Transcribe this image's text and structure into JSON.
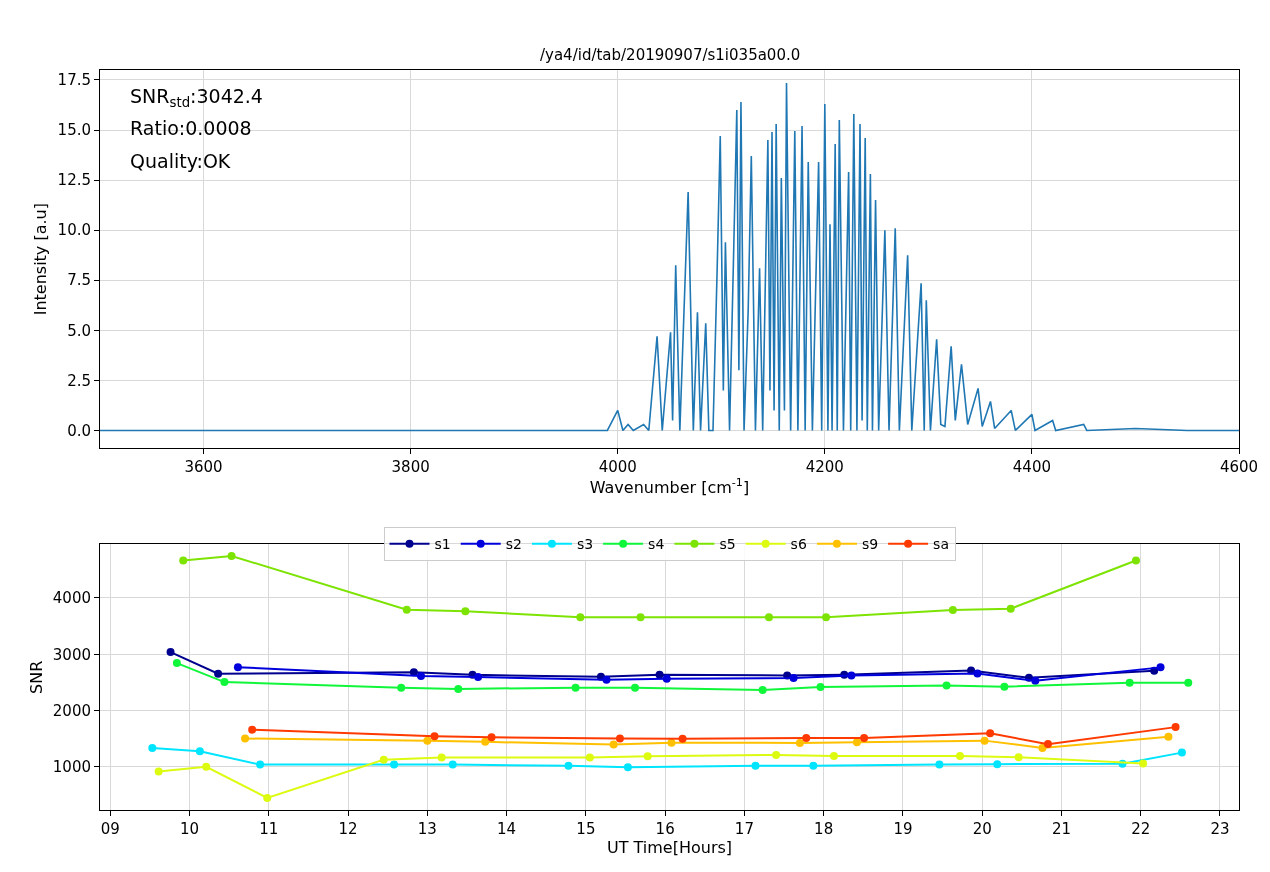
{
  "chart_data": [
    {
      "type": "line",
      "title": "/ya4/id/tab/20190907/s1i035a00.0",
      "xlabel": "Wavenumber [cm$^{-1}$]",
      "ylabel": "Intensity [a.u]",
      "annotations": [
        "SNR$_{std}$:3042.4",
        "Ratio:0.0008",
        "Quality:OK"
      ],
      "xlim": [
        3500,
        4600
      ],
      "xticks": [
        3600,
        3800,
        4000,
        4200,
        4400,
        4600
      ],
      "ylim": [
        -0.9,
        18.0
      ],
      "yticks": [
        {
          "value": 0,
          "label": "0.0"
        },
        {
          "value": 2.5,
          "label": "2.5"
        },
        {
          "value": 5,
          "label": "5.0"
        },
        {
          "value": 7.5,
          "label": "7.5"
        },
        {
          "value": 10,
          "label": "10.0"
        },
        {
          "value": 12.5,
          "label": "12.5"
        },
        {
          "value": 15,
          "label": "15.0"
        },
        {
          "value": 17.5,
          "label": "17.5"
        }
      ],
      "grid": true,
      "marker": "none",
      "line_style": "solid",
      "series": [
        {
          "color": "#1f77b4",
          "x": [
            3500,
            3990,
            4000,
            4005,
            4010,
            4015,
            4025,
            4030,
            4038,
            4043,
            4051,
            4053,
            4056,
            4060,
            4068,
            4073,
            4077,
            4080,
            4085,
            4088,
            4092,
            4096,
            4099,
            4102,
            4104,
            4108,
            4112,
            4115,
            4117,
            4119,
            4122,
            4126,
            4129,
            4133,
            4137,
            4140,
            4145,
            4147,
            4149,
            4151,
            4153,
            4156,
            4158,
            4161,
            4163,
            4167,
            4171,
            4174,
            4178,
            4181,
            4184,
            4188,
            4194,
            4197,
            4200,
            4203,
            4205,
            4207,
            4210,
            4212,
            4214,
            4218,
            4223,
            4225,
            4228,
            4231,
            4234,
            4236,
            4239,
            4241,
            4244,
            4246,
            4249,
            4252,
            4258,
            4262,
            4268,
            4272,
            4280,
            4284,
            4293,
            4296,
            4298,
            4302,
            4308,
            4312,
            4316,
            4322,
            4326,
            4332,
            4338,
            4348,
            4352,
            4360,
            4364,
            4380,
            4384,
            4400,
            4403,
            4420,
            4423,
            4450,
            4453,
            4500,
            4550,
            4600
          ],
          "values": [
            0,
            0,
            1.0,
            0,
            0.3,
            0,
            0.3,
            0,
            4.7,
            0,
            4.9,
            0.5,
            8.25,
            0,
            11.9,
            0,
            5.9,
            0,
            5.35,
            0,
            0,
            8,
            14.7,
            2,
            9.4,
            0,
            9,
            16.0,
            3,
            16.4,
            0,
            6,
            13.7,
            0,
            8.1,
            0,
            14.5,
            2,
            14.9,
            1,
            15.3,
            0,
            12.6,
            1,
            17.35,
            0,
            14.95,
            0,
            15.2,
            0,
            13.4,
            0,
            13.4,
            0,
            16.3,
            0,
            10.3,
            0,
            14.3,
            0,
            15.5,
            0,
            12.9,
            0,
            15.8,
            0,
            15.3,
            0.5,
            14.6,
            0,
            12.8,
            0,
            11.5,
            0,
            10.0,
            0,
            10.1,
            0,
            8.75,
            0,
            7.35,
            0,
            6.5,
            0,
            4.55,
            0.3,
            0.2,
            4.2,
            0.5,
            3.3,
            0.3,
            2.1,
            0.2,
            1.45,
            0.1,
            1.0,
            0,
            0.8,
            0,
            0.5,
            0,
            0.3,
            0,
            0.1,
            0,
            0
          ]
        }
      ]
    },
    {
      "type": "line",
      "xlabel": "UT Time[Hours]",
      "ylabel": "SNR",
      "xlim": [
        8.87,
        23.24
      ],
      "xticks": [
        {
          "value": 9,
          "label": "09"
        },
        10,
        11,
        12,
        13,
        14,
        15,
        16,
        17,
        18,
        19,
        20,
        21,
        22,
        23
      ],
      "ylim": [
        227,
        4955
      ],
      "yticks": [
        1000,
        2000,
        3000,
        4000
      ],
      "grid": true,
      "legend": "top",
      "marker": "circle",
      "line_style": "solid",
      "series": [
        {
          "name": "s1",
          "color": "#00008f",
          "x": [
            9.76,
            10.36,
            12.83,
            13.57,
            15.19,
            15.93,
            17.54,
            18.26,
            19.86,
            20.59,
            22.17
          ],
          "values": [
            3038,
            2654,
            2681,
            2634,
            2600,
            2634,
            2623,
            2637,
            2712,
            2582,
            2705
          ]
        },
        {
          "name": "s2",
          "color": "#0000dd",
          "x": [
            10.61,
            12.92,
            13.64,
            15.26,
            16.02,
            17.62,
            18.35,
            19.94,
            20.67,
            22.25
          ],
          "values": [
            2769,
            2614,
            2594,
            2547,
            2567,
            2576,
            2623,
            2658,
            2528,
            2767
          ]
        },
        {
          "name": "s3",
          "color": "#00e5ff",
          "x": [
            9.53,
            10.13,
            10.89,
            12.58,
            13.32,
            14.78,
            15.53,
            17.14,
            17.87,
            19.46,
            20.19,
            21.77,
            22.52
          ],
          "values": [
            1336,
            1276,
            1040,
            1040,
            1040,
            1020,
            993,
            1021,
            1021,
            1041,
            1048,
            1055,
            1253
          ]
        },
        {
          "name": "s4",
          "color": "#10f63a",
          "x": [
            9.84,
            10.44,
            12.67,
            13.39,
            14.87,
            15.62,
            17.23,
            17.96,
            19.55,
            20.28,
            21.86,
            22.6
          ],
          "values": [
            2843,
            2506,
            2406,
            2385,
            2406,
            2406,
            2363,
            2418,
            2445,
            2425,
            2493,
            2493
          ]
        },
        {
          "name": "s5",
          "color": "#7de302",
          "x": [
            9.92,
            10.53,
            12.74,
            13.48,
            14.93,
            15.69,
            17.31,
            18.03,
            19.63,
            20.36,
            21.94
          ],
          "values": [
            4665,
            4746,
            3791,
            3764,
            3656,
            3656,
            3658,
            3658,
            3788,
            3809,
            4665
          ]
        },
        {
          "name": "s6",
          "color": "#dcfb10",
          "x": [
            9.61,
            10.21,
            10.98,
            12.45,
            13.18,
            15.05,
            15.78,
            17.4,
            18.13,
            19.72,
            20.46,
            22.03
          ],
          "values": [
            919,
            1000,
            449,
            1128,
            1168,
            1168,
            1188,
            1212,
            1192,
            1192,
            1171,
            1062
          ]
        },
        {
          "name": "s9",
          "color": "#ffc000",
          "x": [
            10.7,
            13.0,
            13.73,
            15.35,
            16.08,
            17.7,
            18.42,
            20.03,
            20.76,
            22.35
          ],
          "values": [
            1504,
            1464,
            1444,
            1397,
            1430,
            1425,
            1438,
            1466,
            1336,
            1534
          ]
        },
        {
          "name": "sa",
          "color": "#ff3a00",
          "x": [
            10.79,
            13.09,
            13.81,
            15.43,
            16.22,
            17.78,
            18.51,
            20.1,
            20.83,
            22.44
          ],
          "values": [
            1659,
            1545,
            1525,
            1504,
            1500,
            1514,
            1514,
            1596,
            1404,
            1706
          ]
        }
      ]
    }
  ]
}
